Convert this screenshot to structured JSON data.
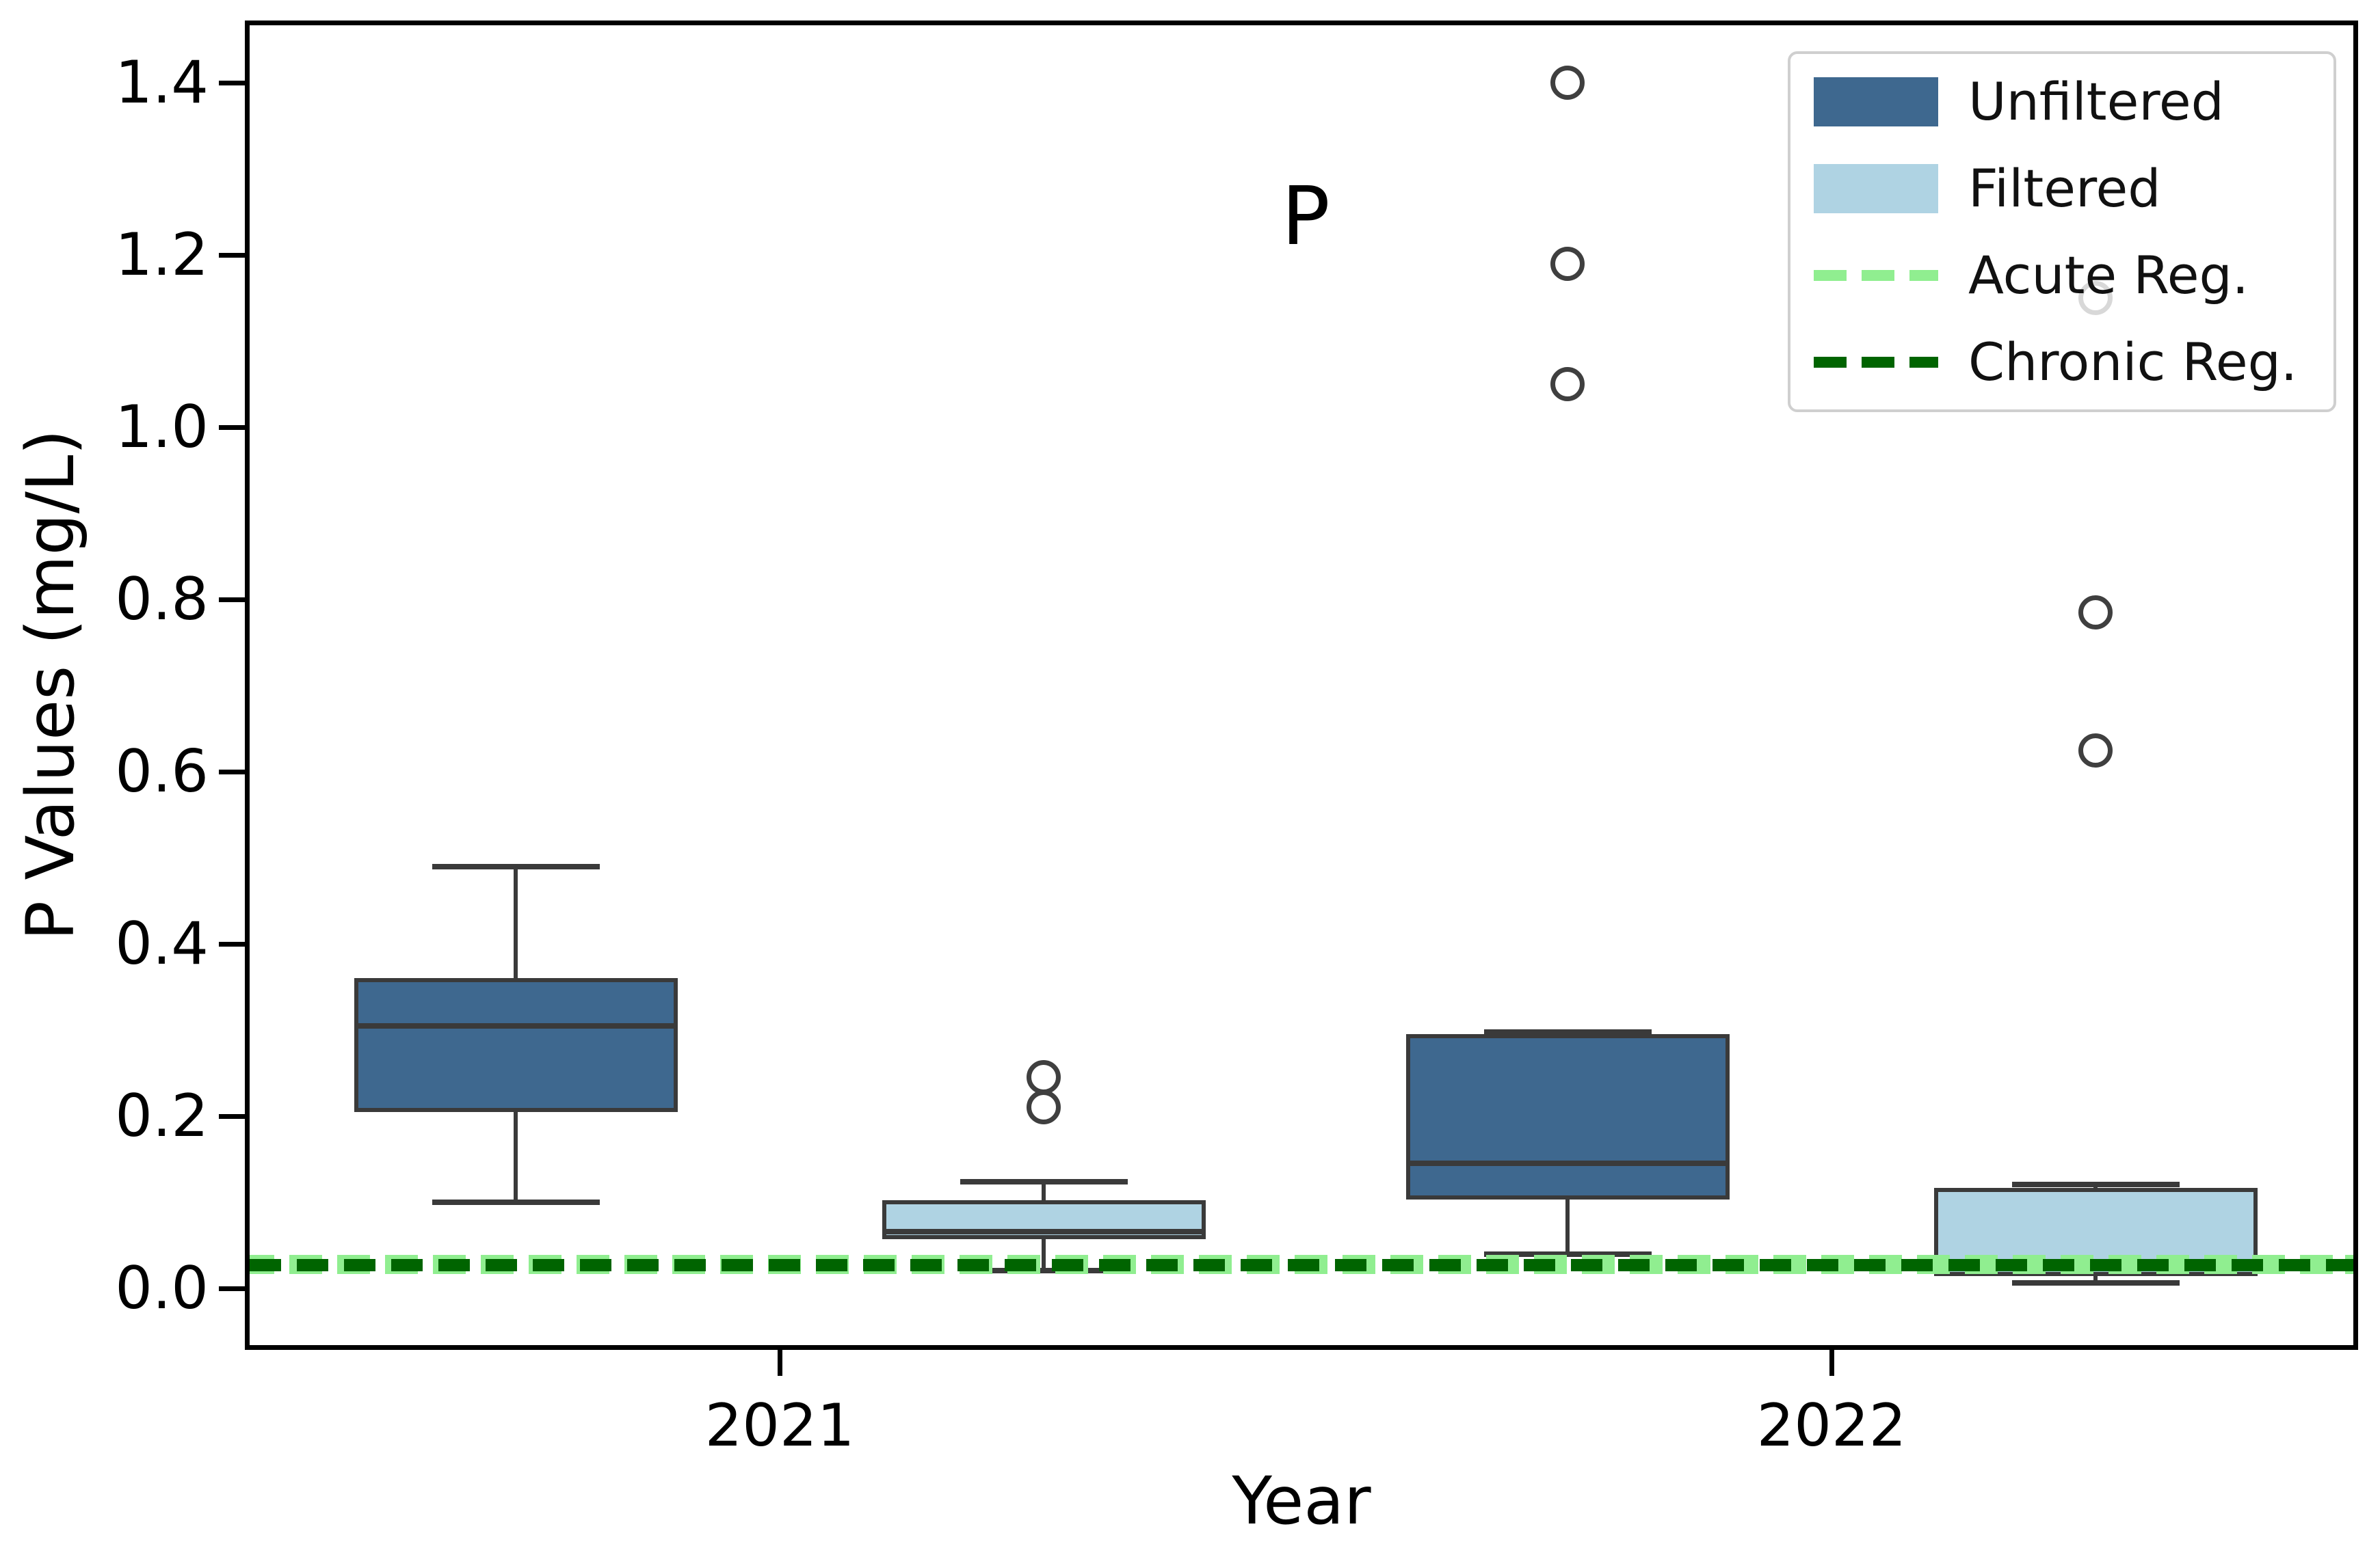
{
  "chart_data": {
    "type": "boxplot",
    "title": "",
    "xlabel": "Year",
    "ylabel": "P Values (mg/L)",
    "categories": [
      "2021",
      "2022"
    ],
    "y_ticks": [
      0.0,
      0.2,
      0.4,
      0.6,
      0.8,
      1.0,
      1.2,
      1.4
    ],
    "y_tick_labels": [
      "0.0",
      "0.2",
      "0.4",
      "0.6",
      "0.8",
      "1.0",
      "1.2",
      "1.4"
    ],
    "ylim": [
      -0.071,
      1.472
    ],
    "grid": false,
    "annotation": {
      "text": "P",
      "x_frac": 0.502,
      "y_value": 1.245
    },
    "series": [
      {
        "name": "Unfiltered",
        "color": "#3E688F",
        "boxes": [
          {
            "category": "2021",
            "whisker_low": 0.1,
            "q1": 0.205,
            "median": 0.305,
            "q3": 0.36,
            "whisker_high": 0.49,
            "outliers": []
          },
          {
            "category": "2022",
            "whisker_low": 0.04,
            "q1": 0.103,
            "median": 0.145,
            "q3": 0.295,
            "whisker_high": 0.298,
            "outliers": [
              1.05,
              1.19,
              1.4
            ]
          }
        ]
      },
      {
        "name": "Filtered",
        "color": "#AFD3E3",
        "boxes": [
          {
            "category": "2021",
            "whisker_low": 0.021,
            "q1": 0.057,
            "median": 0.066,
            "q3": 0.102,
            "whisker_high": 0.124,
            "outliers": [
              0.21,
              0.245
            ]
          },
          {
            "category": "2022",
            "whisker_low": 0.006,
            "q1": 0.014,
            "median": 0.029,
            "q3": 0.117,
            "whisker_high": 0.121,
            "outliers": [
              0.625,
              0.785,
              1.15
            ]
          }
        ]
      }
    ],
    "reference_lines": [
      {
        "label": "Acute Reg.",
        "value": 0.028,
        "color": "#90EE90",
        "style": "dashed"
      },
      {
        "label": "Chronic Reg.",
        "value": 0.027,
        "color": "#006400",
        "style": "dashed"
      }
    ],
    "legend": {
      "position": "upper right",
      "items": [
        {
          "label": "Unfiltered",
          "type": "patch",
          "color": "#3E688F"
        },
        {
          "label": "Filtered",
          "type": "patch",
          "color": "#AFD3E3"
        },
        {
          "label": "Acute Reg.",
          "type": "line",
          "color": "#90EE90"
        },
        {
          "label": "Chronic Reg.",
          "type": "line",
          "color": "#006400"
        }
      ]
    }
  }
}
